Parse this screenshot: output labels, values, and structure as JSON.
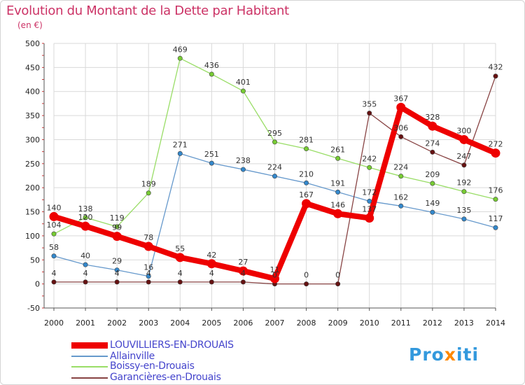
{
  "header": {
    "title": "Evolution du Montant de la Dette par Habitant",
    "subtitle": "(en €)"
  },
  "brand": {
    "part1": "Pro",
    "part2": "x",
    "part3": "iti"
  },
  "colors": {
    "title": "#cc3366",
    "legend_text": "#4444cc",
    "grid": "#d9d9d9",
    "axis": "#555555"
  },
  "chart_data": {
    "type": "line",
    "title": "Evolution du Montant de la Dette par Habitant",
    "subtitle": "(en €)",
    "xlabel": "",
    "ylabel": "",
    "categories": [
      "2000",
      "2001",
      "2002",
      "2003",
      "2004",
      "2005",
      "2006",
      "2007",
      "2008",
      "2009",
      "2010",
      "2011",
      "2012",
      "2013",
      "2014"
    ],
    "ylim": [
      -50,
      500
    ],
    "yticks": [
      -50,
      0,
      50,
      100,
      150,
      200,
      250,
      300,
      350,
      400,
      450,
      500
    ],
    "grid": true,
    "legend_position": "bottom-left",
    "series": [
      {
        "name": "LOUVILLIERS-EN-DROUAIS",
        "color": "#ee0000",
        "marker": "#ee0000",
        "width": "bold",
        "values": [
          140,
          120,
          99,
          78,
          55,
          42,
          27,
          11,
          167,
          146,
          137,
          367,
          328,
          300,
          272
        ],
        "labels": [
          "140",
          "120",
          "99",
          "78",
          "55",
          "42",
          "27",
          "11",
          "167",
          "146",
          "137",
          "367",
          "328",
          "300",
          "272"
        ]
      },
      {
        "name": "Allainville",
        "color": "#6699cc",
        "marker": "#3388cc",
        "width": "thin",
        "values": [
          58,
          40,
          29,
          16,
          271,
          251,
          238,
          224,
          210,
          191,
          172,
          162,
          149,
          135,
          117
        ],
        "labels": [
          "58",
          "40",
          "29",
          "16",
          "271",
          "251",
          "238",
          "224",
          "210",
          "191",
          "172",
          "162",
          "149",
          "135",
          "117"
        ]
      },
      {
        "name": "Boissy-en-Drouais",
        "color": "#99dd66",
        "marker": "#77cc33",
        "width": "thin",
        "values": [
          104,
          138,
          119,
          189,
          469,
          436,
          401,
          295,
          281,
          261,
          242,
          224,
          209,
          192,
          176
        ],
        "labels": [
          "104",
          "138",
          "119",
          "189",
          "469",
          "436",
          "401",
          "295",
          "281",
          "261",
          "242",
          "224",
          "209",
          "192",
          "176"
        ]
      },
      {
        "name": "Garancières-en-Drouais",
        "color": "#884444",
        "marker": "#661111",
        "width": "thin",
        "values": [
          4,
          4,
          4,
          4,
          4,
          4,
          4,
          0,
          0,
          0,
          355,
          306,
          274,
          247,
          432
        ],
        "labels": [
          "4",
          "4",
          "4",
          "4",
          "4",
          "4",
          "4",
          "0",
          "0",
          "0",
          "355",
          "306",
          "274",
          "247",
          "432"
        ]
      }
    ]
  }
}
